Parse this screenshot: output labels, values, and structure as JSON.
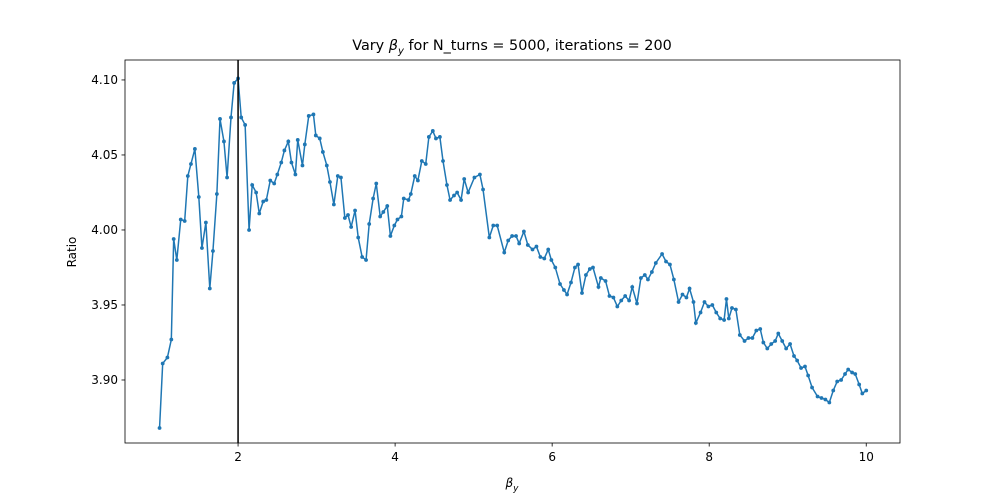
{
  "chart_data": {
    "type": "line",
    "title": {
      "before": "Vary ",
      "symbol": "β",
      "sub": "y",
      "after": " for N_turns = 5000, iterations = 200"
    },
    "xlabel": {
      "symbol": "β",
      "sub": "y"
    },
    "ylabel": "Ratio",
    "xlim": [
      0.56,
      10.43
    ],
    "ylim": [
      3.858,
      4.1133
    ],
    "xticks": [
      2,
      4,
      6,
      8,
      10
    ],
    "yticks": [
      {
        "value": 3.9,
        "label": "3.90"
      },
      3.95,
      {
        "value": 4.0,
        "label": "4.00"
      },
      4.05,
      {
        "value": 4.1,
        "label": "4.10"
      }
    ],
    "vline": 2,
    "vline_color": "#000000",
    "series": [
      {
        "color": "#1f77b4",
        "x": [
          1.0,
          1.04,
          1.1,
          1.15,
          1.18,
          1.22,
          1.27,
          1.32,
          1.36,
          1.4,
          1.45,
          1.5,
          1.54,
          1.59,
          1.64,
          1.68,
          1.73,
          1.77,
          1.82,
          1.86,
          1.91,
          1.95,
          2.0,
          2.04,
          2.09,
          2.14,
          2.18,
          2.23,
          2.27,
          2.32,
          2.36,
          2.41,
          2.46,
          2.5,
          2.55,
          2.59,
          2.64,
          2.68,
          2.73,
          2.76,
          2.82,
          2.85,
          2.9,
          2.96,
          2.99,
          3.04,
          3.08,
          3.13,
          3.17,
          3.22,
          3.27,
          3.31,
          3.36,
          3.4,
          3.44,
          3.49,
          3.53,
          3.58,
          3.63,
          3.67,
          3.72,
          3.76,
          3.81,
          3.85,
          3.9,
          3.94,
          3.99,
          4.03,
          4.08,
          4.11,
          4.17,
          4.2,
          4.25,
          4.29,
          4.34,
          4.39,
          4.43,
          4.48,
          4.52,
          4.57,
          4.61,
          4.66,
          4.7,
          4.75,
          4.79,
          4.84,
          4.88,
          4.93,
          5.01,
          5.08,
          5.12,
          5.2,
          5.25,
          5.3,
          5.39,
          5.44,
          5.49,
          5.54,
          5.58,
          5.64,
          5.69,
          5.75,
          5.8,
          5.85,
          5.9,
          5.95,
          5.99,
          6.04,
          6.1,
          6.15,
          6.19,
          6.24,
          6.29,
          6.33,
          6.38,
          6.43,
          6.48,
          6.52,
          6.59,
          6.62,
          6.68,
          6.73,
          6.78,
          6.83,
          6.88,
          6.93,
          6.98,
          7.02,
          7.08,
          7.13,
          7.18,
          7.22,
          7.27,
          7.32,
          7.4,
          7.45,
          7.5,
          7.55,
          7.61,
          7.66,
          7.71,
          7.75,
          7.8,
          7.83,
          7.89,
          7.94,
          7.99,
          8.04,
          8.09,
          8.14,
          8.19,
          8.22,
          8.25,
          8.29,
          8.34,
          8.39,
          8.45,
          8.5,
          8.55,
          8.6,
          8.65,
          8.69,
          8.74,
          8.79,
          8.84,
          8.88,
          8.93,
          8.98,
          9.03,
          9.08,
          9.12,
          9.17,
          9.22,
          9.26,
          9.31,
          9.38,
          9.43,
          9.48,
          9.53,
          9.58,
          9.63,
          9.68,
          9.73,
          9.77,
          9.82,
          9.86,
          9.91,
          9.95,
          10.0
        ],
        "values": [
          3.868,
          3.911,
          3.915,
          3.927,
          3.994,
          3.98,
          4.007,
          4.006,
          4.036,
          4.044,
          4.054,
          4.022,
          3.988,
          4.005,
          3.961,
          3.986,
          4.024,
          4.074,
          4.059,
          4.035,
          4.075,
          4.098,
          4.101,
          4.075,
          4.07,
          4.0,
          4.03,
          4.025,
          4.011,
          4.019,
          4.02,
          4.033,
          4.031,
          4.037,
          4.045,
          4.053,
          4.059,
          4.045,
          4.037,
          4.06,
          4.043,
          4.057,
          4.076,
          4.077,
          4.063,
          4.061,
          4.052,
          4.043,
          4.032,
          4.017,
          4.036,
          4.035,
          4.008,
          4.01,
          4.002,
          4.013,
          3.995,
          3.982,
          3.98,
          4.004,
          4.021,
          4.031,
          4.009,
          4.012,
          4.016,
          3.996,
          4.003,
          4.007,
          4.009,
          4.021,
          4.02,
          4.024,
          4.036,
          4.033,
          4.046,
          4.044,
          4.062,
          4.066,
          4.061,
          4.062,
          4.046,
          4.03,
          4.02,
          4.023,
          4.025,
          4.02,
          4.034,
          4.025,
          4.035,
          4.037,
          4.027,
          3.995,
          4.003,
          4.003,
          3.985,
          3.993,
          3.996,
          3.996,
          3.991,
          3.999,
          3.99,
          3.987,
          3.989,
          3.982,
          3.981,
          3.987,
          3.98,
          3.975,
          3.964,
          3.96,
          3.957,
          3.965,
          3.975,
          3.977,
          3.958,
          3.97,
          3.974,
          3.975,
          3.962,
          3.968,
          3.966,
          3.956,
          3.955,
          3.949,
          3.953,
          3.956,
          3.953,
          3.962,
          3.951,
          3.968,
          3.97,
          3.967,
          3.972,
          3.978,
          3.984,
          3.979,
          3.977,
          3.967,
          3.952,
          3.957,
          3.955,
          3.961,
          3.952,
          3.938,
          3.945,
          3.952,
          3.949,
          3.95,
          3.945,
          3.941,
          3.94,
          3.954,
          3.941,
          3.948,
          3.947,
          3.93,
          3.926,
          3.928,
          3.928,
          3.933,
          3.934,
          3.925,
          3.921,
          3.924,
          3.926,
          3.931,
          3.926,
          3.921,
          3.924,
          3.916,
          3.913,
          3.908,
          3.909,
          3.903,
          3.895,
          3.889,
          3.888,
          3.887,
          3.885,
          3.893,
          3.899,
          3.9,
          3.904,
          3.907,
          3.905,
          3.904,
          3.897,
          3.891,
          3.893
        ]
      }
    ]
  }
}
